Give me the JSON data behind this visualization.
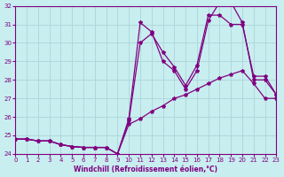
{
  "xlabel": "Windchill (Refroidissement éolien,°C)",
  "bg_color": "#c8eef0",
  "line_color": "#800080",
  "grid_color": "#b0d8dc",
  "xmin": 0,
  "xmax": 23,
  "ymin": 24,
  "ymax": 32,
  "line1_x": [
    0,
    1,
    2,
    3,
    4,
    5,
    6,
    7,
    8,
    9,
    10,
    11,
    12,
    13,
    14,
    15,
    16,
    17,
    18,
    19,
    20,
    21,
    22,
    23
  ],
  "line1_y": [
    24.8,
    24.8,
    24.7,
    24.7,
    24.5,
    24.4,
    24.35,
    24.35,
    24.35,
    24.0,
    25.9,
    31.1,
    30.6,
    29.0,
    28.5,
    27.5,
    28.5,
    31.2,
    32.2,
    32.2,
    31.1,
    28.0,
    28.0,
    27.2
  ],
  "line2_x": [
    0,
    1,
    2,
    3,
    4,
    5,
    6,
    7,
    8,
    9,
    10,
    11,
    12,
    13,
    14,
    15,
    16,
    17,
    18,
    19,
    20,
    21,
    22,
    23
  ],
  "line2_y": [
    24.8,
    24.8,
    24.7,
    24.7,
    24.5,
    24.4,
    24.35,
    24.35,
    24.35,
    24.0,
    25.8,
    30.0,
    30.5,
    29.5,
    28.7,
    27.7,
    28.8,
    31.5,
    31.5,
    31.0,
    31.0,
    28.2,
    28.2,
    27.2
  ],
  "line3_x": [
    0,
    1,
    2,
    3,
    4,
    5,
    6,
    7,
    8,
    9,
    10,
    11,
    12,
    13,
    14,
    15,
    16,
    17,
    18,
    19,
    20,
    21,
    22,
    23
  ],
  "line3_y": [
    24.8,
    24.8,
    24.7,
    24.7,
    24.5,
    24.4,
    24.35,
    24.35,
    24.35,
    24.0,
    25.6,
    25.9,
    26.3,
    26.6,
    27.0,
    27.2,
    27.5,
    27.8,
    28.1,
    28.3,
    28.5,
    27.8,
    27.0,
    27.0
  ]
}
